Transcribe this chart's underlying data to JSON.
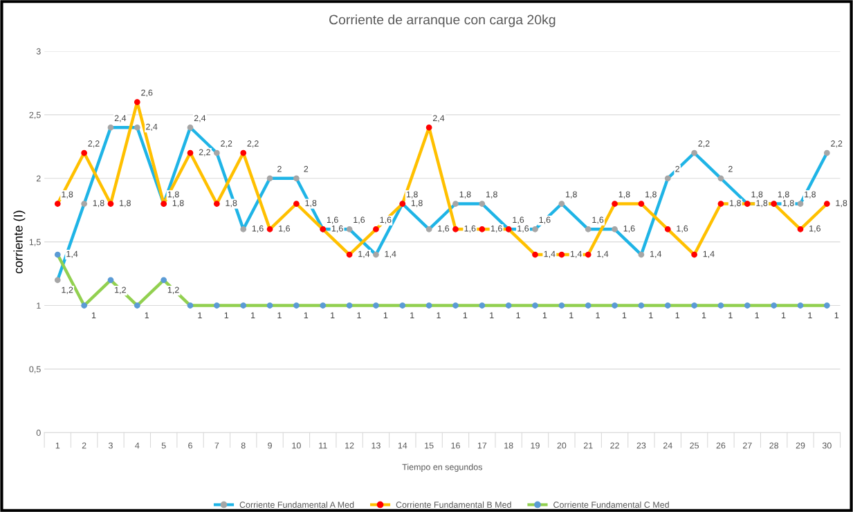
{
  "chart_data": {
    "type": "line",
    "title": "Corriente de arranque con carga 20kg",
    "xlabel": "Tiempo en segundos",
    "ylabel": "corriente (I)",
    "categories": [
      "1",
      "2",
      "3",
      "4",
      "5",
      "6",
      "7",
      "8",
      "9",
      "10",
      "11",
      "12",
      "13",
      "14",
      "15",
      "16",
      "17",
      "18",
      "19",
      "20",
      "21",
      "22",
      "23",
      "24",
      "25",
      "26",
      "27",
      "28",
      "29",
      "30"
    ],
    "ylim": [
      0,
      3
    ],
    "yticks": [
      0,
      {
        "value": 0.5,
        "label": "0,5"
      },
      1,
      {
        "value": 1.5,
        "label": "1,5"
      },
      2,
      {
        "value": 2.5,
        "label": "2,5"
      },
      3
    ],
    "grid": "y",
    "legend": "bottom",
    "marker": "circle",
    "series": [
      {
        "name": "Corriente Fundamental A Med",
        "color": "#1fb4e6",
        "colors": [
          "#a6a6a6",
          "#a6a6a6",
          "#a6a6a6",
          "#a6a6a6",
          "#a6a6a6",
          "#a6a6a6",
          "#a6a6a6",
          "#a6a6a6",
          "#a6a6a6",
          "#a6a6a6",
          "#a6a6a6",
          "#a6a6a6",
          "#a6a6a6",
          "#a6a6a6",
          "#a6a6a6",
          "#a6a6a6",
          "#a6a6a6",
          "#a6a6a6",
          "#a6a6a6",
          "#a6a6a6",
          "#a6a6a6",
          "#a6a6a6",
          "#a6a6a6",
          "#a6a6a6",
          "#a6a6a6",
          "#a6a6a6",
          "#a6a6a6",
          "#a6a6a6",
          "#a6a6a6",
          "#a6a6a6"
        ],
        "values": [
          1.2,
          1.8,
          2.4,
          2.4,
          1.8,
          2.4,
          2.2,
          1.6,
          2,
          2,
          1.6,
          1.6,
          1.4,
          1.8,
          1.6,
          1.8,
          1.8,
          1.6,
          1.6,
          1.8,
          1.6,
          1.6,
          1.4,
          2,
          2.2,
          2,
          1.8,
          1.8,
          1.8,
          2.2
        ],
        "value_labels": [
          "1,2",
          "1,8",
          "2,4",
          "2,4",
          "1,8",
          "2,4",
          "2,2",
          "1,6",
          "2",
          "2",
          "1,6",
          "1,6",
          "1,4",
          "1,8",
          "1,6",
          "1,8",
          "1,8",
          "1,6",
          "1,6",
          "1,8",
          "1,6",
          "1,6",
          "1,4",
          "2",
          "2,2",
          "2",
          "1,8",
          "1,8",
          "1,8",
          "2,2"
        ]
      },
      {
        "name": "Corriente Fundamental B Med",
        "color": "#ffc000",
        "colors": [
          "#ff0000",
          "#ff0000",
          "#ff0000",
          "#ff0000",
          "#ff0000",
          "#ff0000",
          "#ff0000",
          "#ff0000",
          "#ff0000",
          "#ff0000",
          "#ff0000",
          "#ff0000",
          "#ff0000",
          "#ff0000",
          "#ff0000",
          "#ff0000",
          "#ff0000",
          "#ff0000",
          "#ff0000",
          "#ff0000",
          "#ff0000",
          "#ff0000",
          "#ff0000",
          "#ff0000",
          "#ff0000",
          "#ff0000",
          "#ff0000",
          "#ff0000",
          "#ff0000",
          "#ff0000"
        ],
        "values": [
          1.8,
          2.2,
          1.8,
          2.6,
          1.8,
          2.2,
          1.8,
          2.2,
          1.6,
          1.8,
          1.6,
          1.4,
          1.6,
          1.8,
          2.4,
          1.6,
          1.6,
          1.6,
          1.4,
          1.4,
          1.4,
          1.8,
          1.8,
          1.6,
          1.4,
          1.8,
          1.8,
          1.8,
          1.6,
          1.8
        ],
        "value_labels": [
          "1,8",
          "2,2",
          "1,8",
          "2,6",
          "1,8",
          "2,2",
          "1,8",
          "2,2",
          "1,6",
          "1,8",
          "1,6",
          "1,4",
          "1,6",
          "1,8",
          "2,4",
          "1,6",
          "1,6",
          "1,6",
          "1,4",
          "1,4",
          "1,4",
          "1,8",
          "1,8",
          "1,6",
          "1,4",
          "1,8",
          "1,8",
          "1,8",
          "1,6",
          "1,8"
        ]
      },
      {
        "name": "Corriente Fundamental C Med",
        "color": "#92d050",
        "colors": [
          "#5b9bd5",
          "#5b9bd5",
          "#5b9bd5",
          "#5b9bd5",
          "#5b9bd5",
          "#5b9bd5",
          "#5b9bd5",
          "#5b9bd5",
          "#5b9bd5",
          "#5b9bd5",
          "#5b9bd5",
          "#5b9bd5",
          "#5b9bd5",
          "#5b9bd5",
          "#5b9bd5",
          "#5b9bd5",
          "#5b9bd5",
          "#5b9bd5",
          "#5b9bd5",
          "#5b9bd5",
          "#5b9bd5",
          "#5b9bd5",
          "#5b9bd5",
          "#5b9bd5",
          "#5b9bd5",
          "#5b9bd5",
          "#5b9bd5",
          "#5b9bd5",
          "#5b9bd5",
          "#5b9bd5"
        ],
        "values": [
          1.4,
          1,
          1.2,
          1,
          1.2,
          1,
          1,
          1,
          1,
          1,
          1,
          1,
          1,
          1,
          1,
          1,
          1,
          1,
          1,
          1,
          1,
          1,
          1,
          1,
          1,
          1,
          1,
          1,
          1,
          1
        ],
        "value_labels": [
          "1,4",
          "1",
          "1,2",
          "1",
          "1,2",
          "1",
          "1",
          "1",
          "1",
          "1",
          "1",
          "1",
          "1",
          "1",
          "1",
          "1",
          "1",
          "1",
          "1",
          "1",
          "1",
          "1",
          "1",
          "1",
          "1",
          "1",
          "1",
          "1",
          "1",
          "1"
        ]
      }
    ]
  }
}
